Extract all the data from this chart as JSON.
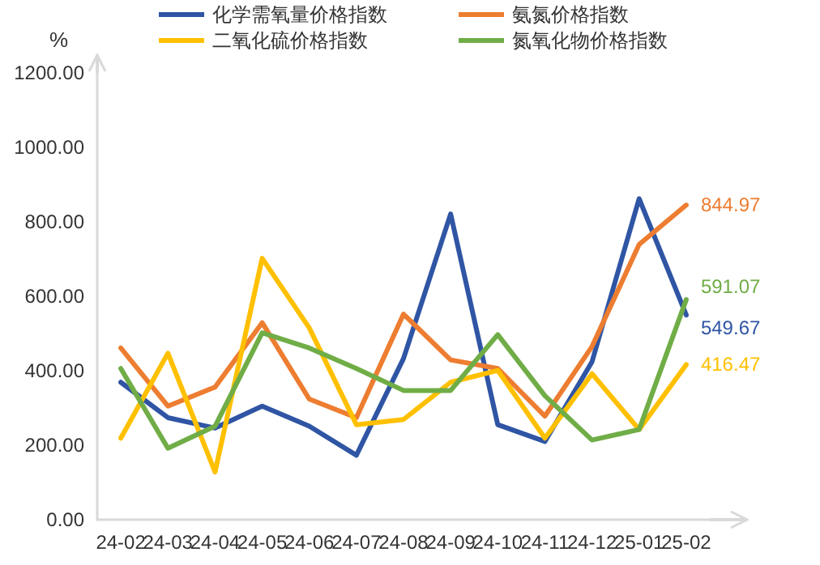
{
  "chart_data": {
    "type": "line",
    "ylabel": "%",
    "categories": [
      "24-02",
      "24-03",
      "24-04",
      "24-05",
      "24-06",
      "24-07",
      "24-08",
      "24-09",
      "24-10",
      "24-11",
      "24-12",
      "25-01",
      "25-02"
    ],
    "series": [
      {
        "name": "化学需氧量价格指数",
        "color": "#2f55a4",
        "values": [
          369,
          274,
          246,
          305,
          251,
          173,
          433,
          821,
          255,
          210,
          424,
          862,
          549.67
        ],
        "value_labels": [
          null,
          null,
          null,
          null,
          null,
          null,
          null,
          null,
          null,
          null,
          null,
          null,
          "549.67"
        ]
      },
      {
        "name": "氨氮价格指数",
        "color": "#ed7d31",
        "values": [
          461,
          305,
          356,
          529,
          324,
          274,
          552,
          429,
          406,
          278,
          465,
          739,
          844.97
        ],
        "value_labels": [
          null,
          null,
          null,
          null,
          null,
          null,
          null,
          null,
          null,
          null,
          null,
          null,
          "844.97"
        ]
      },
      {
        "name": "二氧化硫价格指数",
        "color": "#ffc000",
        "values": [
          219,
          447,
          128,
          702,
          515,
          255,
          269,
          369,
          401,
          219,
          392,
          242,
          416.47
        ],
        "value_labels": [
          null,
          null,
          null,
          null,
          null,
          null,
          null,
          null,
          null,
          null,
          null,
          null,
          "416.47"
        ]
      },
      {
        "name": "氮氧化物价格指数",
        "color": "#70ad47",
        "values": [
          406,
          192,
          251,
          502,
          461,
          406,
          347,
          347,
          497,
          333,
          214,
          242,
          591.07
        ],
        "value_labels": [
          null,
          null,
          null,
          null,
          null,
          null,
          null,
          null,
          null,
          null,
          null,
          null,
          "591.07"
        ]
      }
    ],
    "ylim": [
      0,
      1200
    ],
    "yticks": [
      {
        "value": 0,
        "label": "0.00"
      },
      {
        "value": 200,
        "label": "200.00"
      },
      {
        "value": 400,
        "label": "400.00"
      },
      {
        "value": 600,
        "label": "600.00"
      },
      {
        "value": 800,
        "label": "800.00"
      },
      {
        "value": 1000,
        "label": "1000.00"
      },
      {
        "value": 1200,
        "label": "1200.00"
      }
    ],
    "grid": false,
    "legend": "top",
    "marker": "none",
    "line_style": "solid"
  }
}
